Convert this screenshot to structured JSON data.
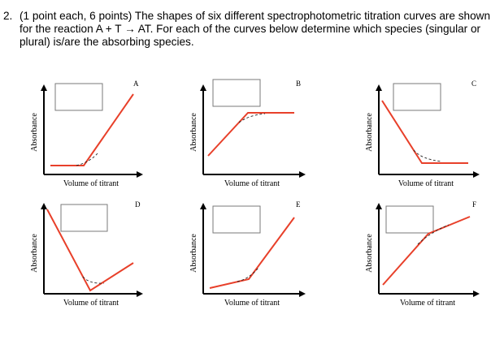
{
  "question": {
    "number": "2.",
    "text": "(1 point each, 6 points) The shapes of six different spectrophotometric titration curves are shown for the reaction A + T → AT. For each of the curves below determine which species (singular or plural) is/are the absorbing species."
  },
  "axis_labels": {
    "x": "Volume of titrant",
    "y": "Absorbance"
  },
  "panels": [
    {
      "id": "A",
      "answer": ""
    },
    {
      "id": "B",
      "answer": ""
    },
    {
      "id": "C",
      "answer": ""
    },
    {
      "id": "D",
      "answer": ""
    },
    {
      "id": "E",
      "answer": ""
    },
    {
      "id": "F",
      "answer": ""
    }
  ],
  "colors": {
    "curve": "#e8402a",
    "axis": "#000000",
    "box_border": "#7a7a7a"
  }
}
